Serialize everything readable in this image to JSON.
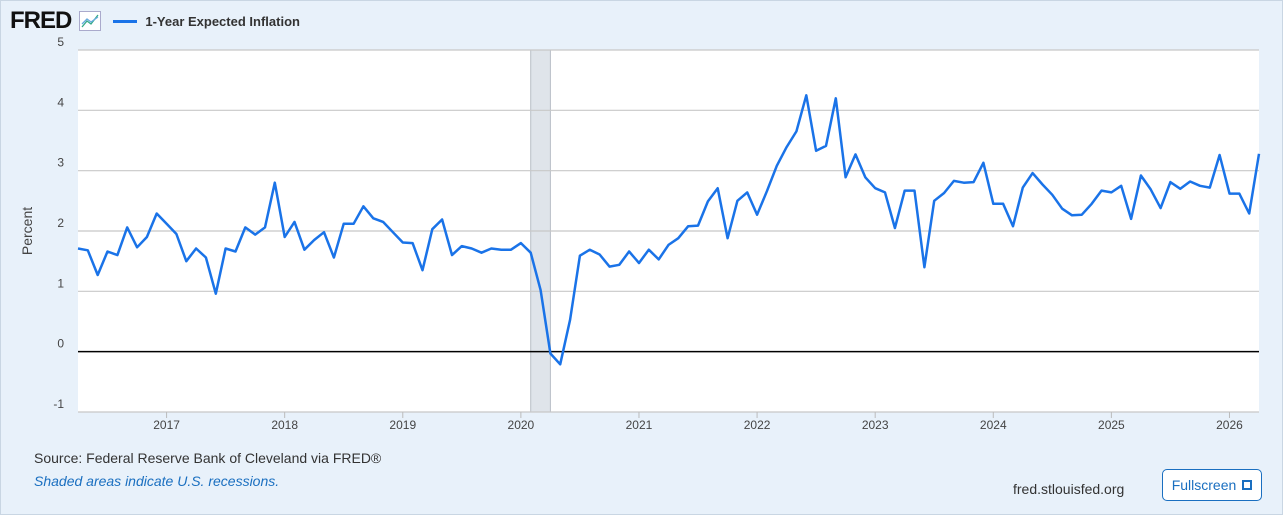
{
  "header": {
    "logo": "FRED",
    "legend_label": "1-Year Expected Inflation"
  },
  "footer": {
    "source": "Source: Federal Reserve Bank of Cleveland via FRED®",
    "recession_note": "Shaded areas indicate U.S. recessions.",
    "site": "fred.stlouisfed.org",
    "fullscreen_label": "Fullscreen"
  },
  "colors": {
    "series": "#1a73e8",
    "recession": "#dfe4ea"
  },
  "chart_data": {
    "type": "line",
    "title": "1-Year Expected Inflation",
    "xlabel": "",
    "ylabel": "Percent",
    "ylim": [
      -1,
      5
    ],
    "yticks": [
      -1,
      0,
      1,
      2,
      3,
      4,
      5
    ],
    "xticks": [
      "2017",
      "2018",
      "2019",
      "2020",
      "2021",
      "2022",
      "2023",
      "2024",
      "2025",
      "2026"
    ],
    "x_start": "2016-04",
    "frequency": "monthly",
    "recessions": [
      [
        "2020-02",
        "2020-04"
      ]
    ],
    "series": [
      {
        "name": "1-Year Expected Inflation",
        "values": [
          1.71,
          1.68,
          1.27,
          1.66,
          1.6,
          2.06,
          1.73,
          1.9,
          2.29,
          2.12,
          1.95,
          1.5,
          1.71,
          1.56,
          0.96,
          1.71,
          1.66,
          2.06,
          1.94,
          2.06,
          2.8,
          1.9,
          2.15,
          1.69,
          1.85,
          1.98,
          1.56,
          2.12,
          2.12,
          2.41,
          2.21,
          2.15,
          1.98,
          1.81,
          1.8,
          1.35,
          2.03,
          2.19,
          1.6,
          1.75,
          1.71,
          1.64,
          1.71,
          1.69,
          1.69,
          1.8,
          1.64,
          1.02,
          -0.03,
          -0.21,
          0.53,
          1.59,
          1.69,
          1.61,
          1.41,
          1.44,
          1.66,
          1.47,
          1.69,
          1.53,
          1.77,
          1.88,
          2.08,
          2.09,
          2.49,
          2.71,
          1.88,
          2.5,
          2.64,
          2.27,
          2.66,
          3.08,
          3.39,
          3.65,
          4.25,
          3.33,
          3.41,
          4.2,
          2.89,
          3.27,
          2.89,
          2.71,
          2.64,
          2.05,
          2.67,
          2.67,
          1.4,
          2.5,
          2.63,
          2.83,
          2.8,
          2.81,
          3.13,
          2.45,
          2.45,
          2.08,
          2.72,
          2.96,
          2.77,
          2.6,
          2.37,
          2.26,
          2.27,
          2.45,
          2.67,
          2.64,
          2.75,
          2.2,
          2.92,
          2.69,
          2.38,
          2.81,
          2.7,
          2.82,
          2.75,
          2.72,
          3.26,
          2.62,
          2.62,
          2.29,
          3.28
        ]
      }
    ]
  }
}
